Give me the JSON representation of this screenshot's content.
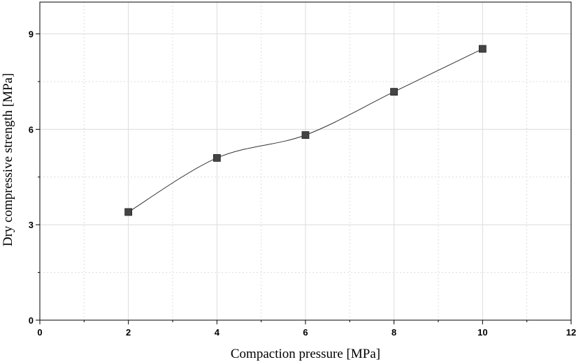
{
  "chart_data": {
    "type": "line",
    "xlabel": "Compaction pressure [MPa]",
    "ylabel": "Dry compressive strength [MPa]",
    "xlim": [
      0,
      12
    ],
    "ylim": [
      0,
      10
    ],
    "x_ticks": [
      0,
      2,
      4,
      6,
      8,
      10,
      12
    ],
    "y_ticks": [
      0,
      3,
      6,
      9
    ],
    "x_tick_labels": [
      "0",
      "2",
      "4",
      "6",
      "8",
      "10",
      "12"
    ],
    "y_tick_labels": [
      "0",
      "3",
      "6",
      "9"
    ],
    "grid": true,
    "smooth": true,
    "series": [
      {
        "marker": "square",
        "color": "#444444",
        "x": [
          2,
          4,
          6,
          8,
          10
        ],
        "y": [
          3.4,
          5.1,
          5.82,
          7.18,
          8.53
        ]
      }
    ]
  }
}
